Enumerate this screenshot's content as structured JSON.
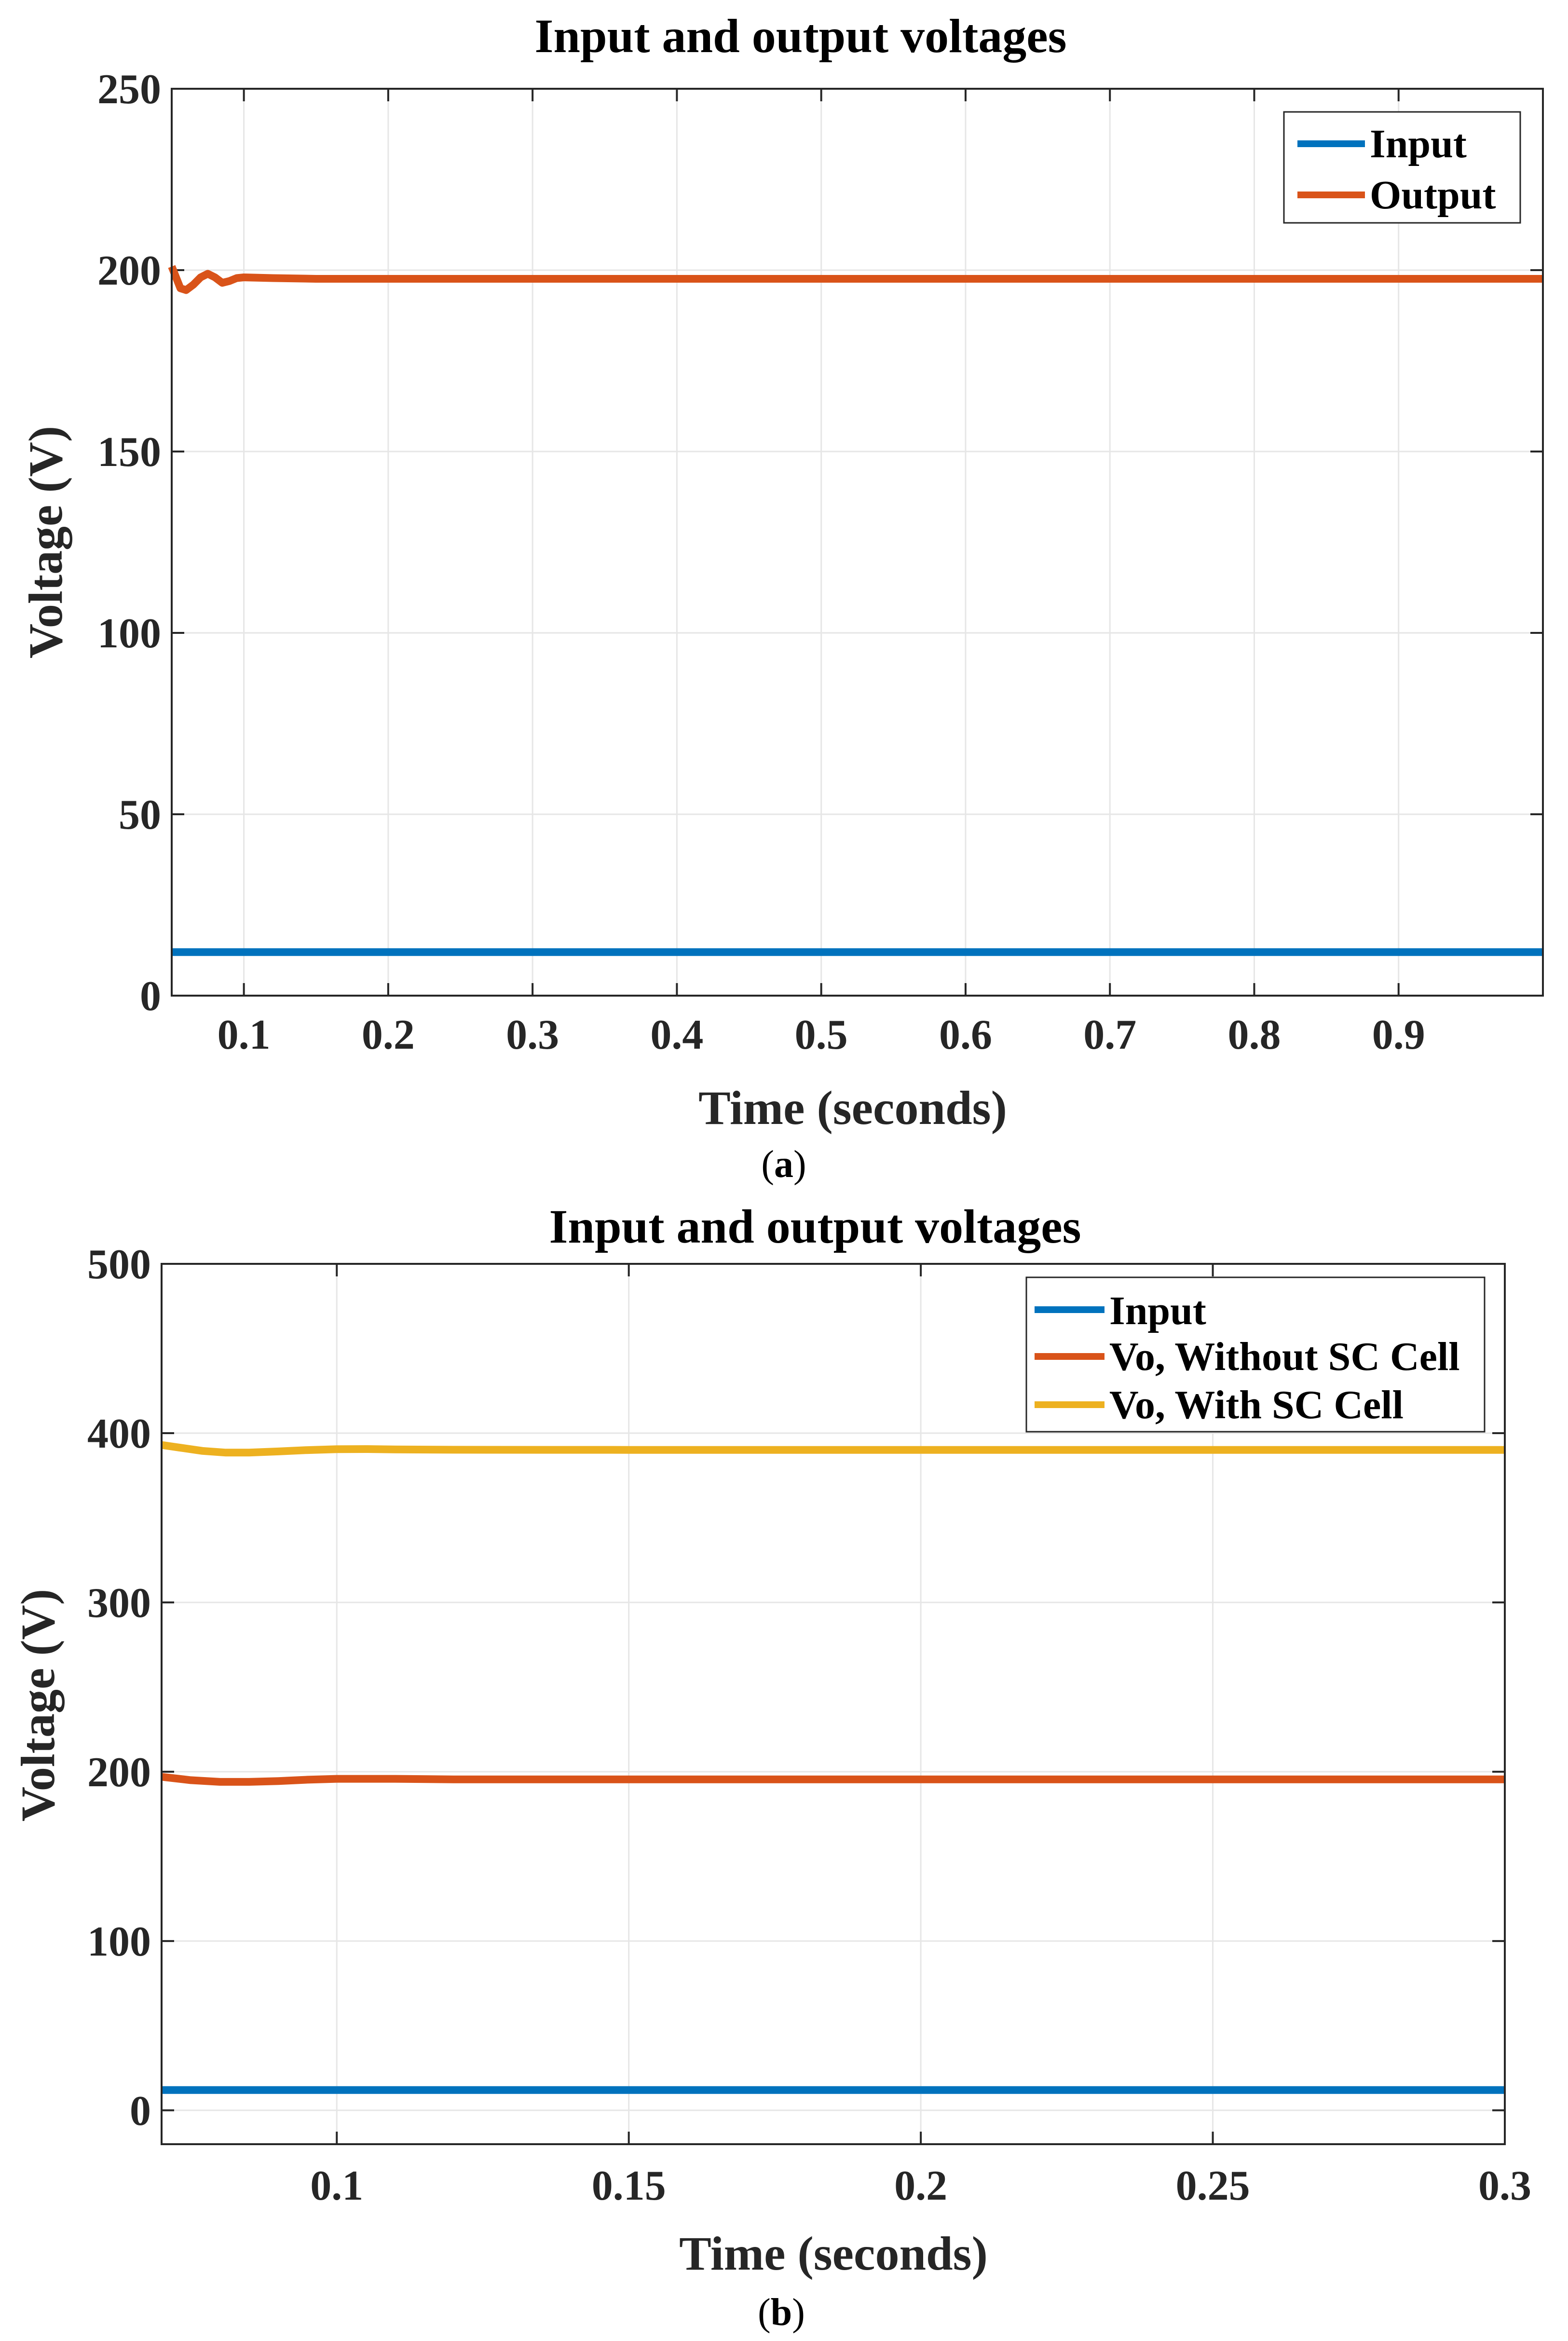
{
  "colors": {
    "input": "#0072BD",
    "output": "#D95319",
    "vo_with": "#EDB120",
    "grid": "#e6e6e6",
    "axis": "#262626"
  },
  "chart_data": [
    {
      "type": "line",
      "panel": "a",
      "title": "Input and output voltages",
      "xlabel": "Time (seconds)",
      "ylabel": "Voltage (V)",
      "xlim": [
        0.05,
        1.0
      ],
      "ylim": [
        0,
        250
      ],
      "xticks": [
        0.1,
        0.2,
        0.3,
        0.4,
        0.5,
        0.6,
        0.7,
        0.8,
        0.9
      ],
      "xtick_labels": [
        "0.1",
        "0.2",
        "0.3",
        "0.4",
        "0.5",
        "0.6",
        "0.7",
        "0.8",
        "0.9"
      ],
      "yticks": [
        0,
        50,
        100,
        150,
        200,
        250
      ],
      "ytick_labels": [
        "0",
        "50",
        "100",
        "150",
        "200",
        "250"
      ],
      "grid": true,
      "legend_position": "top-right",
      "series": [
        {
          "name": "Input",
          "color": "#0072BD",
          "x": [
            0.05,
            1.0
          ],
          "y": [
            12,
            12
          ]
        },
        {
          "name": "Output",
          "color": "#D95319",
          "x": [
            0.05,
            0.053,
            0.056,
            0.06,
            0.065,
            0.07,
            0.075,
            0.08,
            0.085,
            0.09,
            0.095,
            0.1,
            0.12,
            0.15,
            0.3,
            0.5,
            0.7,
            0.9,
            1.0
          ],
          "y": [
            201,
            198,
            195,
            194.5,
            196,
            198,
            199,
            198,
            196.5,
            197,
            197.8,
            198,
            197.8,
            197.6,
            197.6,
            197.6,
            197.6,
            197.6,
            197.6
          ]
        }
      ]
    },
    {
      "type": "line",
      "panel": "b",
      "title": "Input and output voltages",
      "xlabel": "Time (seconds)",
      "ylabel": "Voltage (V)",
      "xlim": [
        0.07,
        0.3
      ],
      "ylim": [
        -20,
        500
      ],
      "xticks": [
        0.1,
        0.15,
        0.2,
        0.25,
        0.3
      ],
      "xtick_labels": [
        "0.1",
        "0.15",
        "0.2",
        "0.25",
        "0.3"
      ],
      "yticks": [
        0,
        100,
        200,
        300,
        400,
        500
      ],
      "ytick_labels": [
        "0",
        "100",
        "200",
        "300",
        "400",
        "500"
      ],
      "grid": true,
      "legend_position": "top-right",
      "series": [
        {
          "name": "Input",
          "color": "#0072BD",
          "x": [
            0.07,
            0.3
          ],
          "y": [
            12,
            12
          ]
        },
        {
          "name": "Vo, Without SC Cell",
          "color": "#D95319",
          "x": [
            0.07,
            0.075,
            0.08,
            0.085,
            0.09,
            0.095,
            0.1,
            0.11,
            0.12,
            0.15,
            0.2,
            0.25,
            0.3
          ],
          "y": [
            197,
            195,
            194,
            194,
            194.5,
            195.3,
            195.8,
            195.8,
            195.5,
            195.5,
            195.5,
            195.5,
            195.5
          ]
        },
        {
          "name": "Vo, With SC Cell",
          "color": "#EDB120",
          "x": [
            0.07,
            0.073,
            0.077,
            0.081,
            0.085,
            0.09,
            0.095,
            0.1,
            0.105,
            0.11,
            0.12,
            0.15,
            0.2,
            0.25,
            0.3
          ],
          "y": [
            393,
            391.5,
            389.5,
            388.5,
            388.5,
            389.2,
            390,
            390.5,
            390.6,
            390.4,
            390.2,
            390.1,
            390.1,
            390.1,
            390.1
          ]
        }
      ]
    }
  ],
  "captions": {
    "a": {
      "open": "(",
      "letter": "a",
      "close": ")"
    },
    "b": {
      "open": "(",
      "letter": "b",
      "close": ")"
    }
  }
}
